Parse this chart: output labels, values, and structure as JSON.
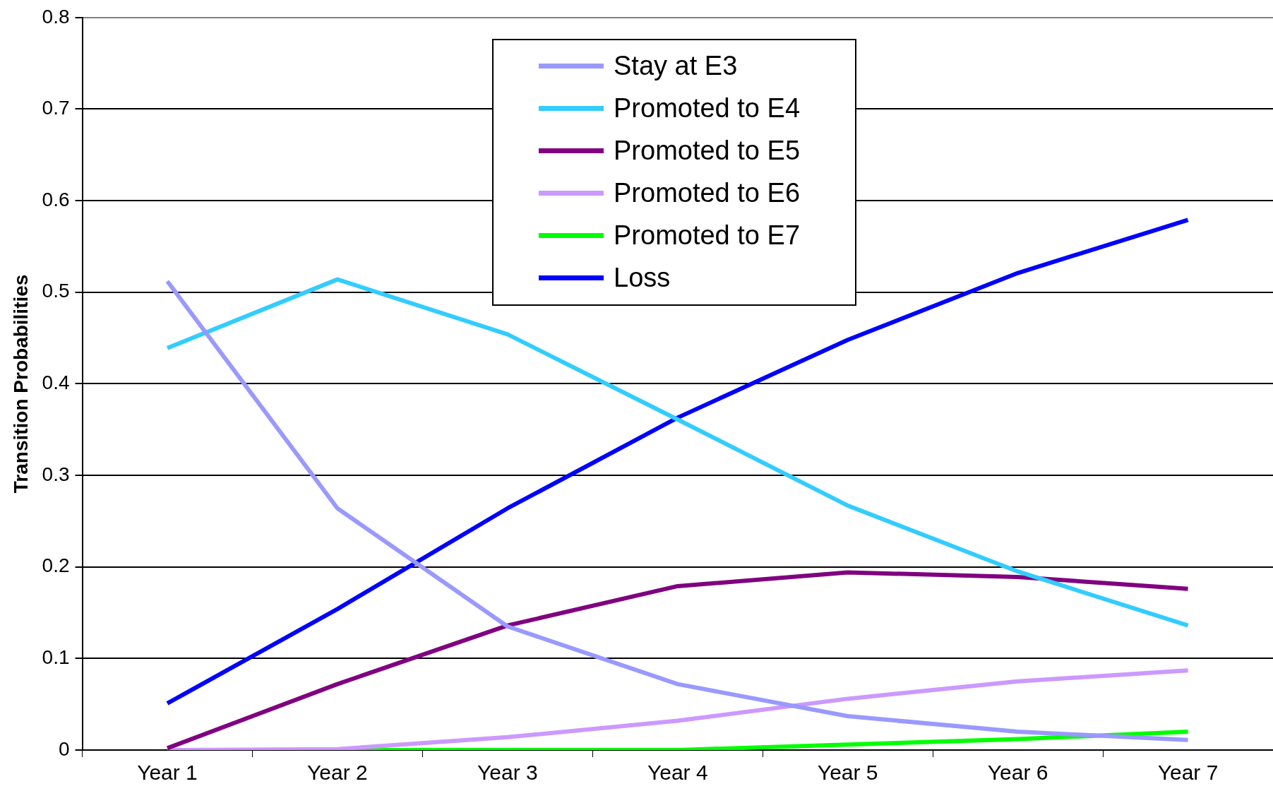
{
  "chart_data": {
    "type": "line",
    "ylabel": "Transition Probabilities",
    "categories": [
      "Year 1",
      "Year 2",
      "Year 3",
      "Year 4",
      "Year 5",
      "Year 6",
      "Year 7"
    ],
    "series": [
      {
        "name": "Stay at E3",
        "color": "#9999ff",
        "values": [
          0.512,
          0.264,
          0.135,
          0.072,
          0.037,
          0.02,
          0.011
        ]
      },
      {
        "name": "Promoted to E4",
        "color": "#33ccff",
        "values": [
          0.439,
          0.514,
          0.454,
          0.361,
          0.267,
          0.195,
          0.136
        ]
      },
      {
        "name": "Promoted to E5",
        "color": "#800080",
        "values": [
          0.002,
          0.072,
          0.136,
          0.179,
          0.194,
          0.189,
          0.176
        ]
      },
      {
        "name": "Promoted to E6",
        "color": "#cc99ff",
        "values": [
          0,
          0.001,
          0.014,
          0.032,
          0.056,
          0.075,
          0.087
        ]
      },
      {
        "name": "Promoted to E7",
        "color": "#00ff00",
        "values": [
          0,
          0,
          0,
          0,
          0.006,
          0.012,
          0.02
        ]
      },
      {
        "name": "Loss",
        "color": "#0000ff",
        "values": [
          0.051,
          0.154,
          0.264,
          0.363,
          0.448,
          0.521,
          0.579
        ]
      }
    ],
    "ylim": [
      0,
      0.8
    ],
    "yticks": [
      0,
      0.1,
      0.2,
      0.3,
      0.4,
      0.5,
      0.6,
      0.7,
      0.8
    ],
    "grid": "y",
    "legend": "top",
    "marker": "none",
    "line_style": "solid"
  }
}
